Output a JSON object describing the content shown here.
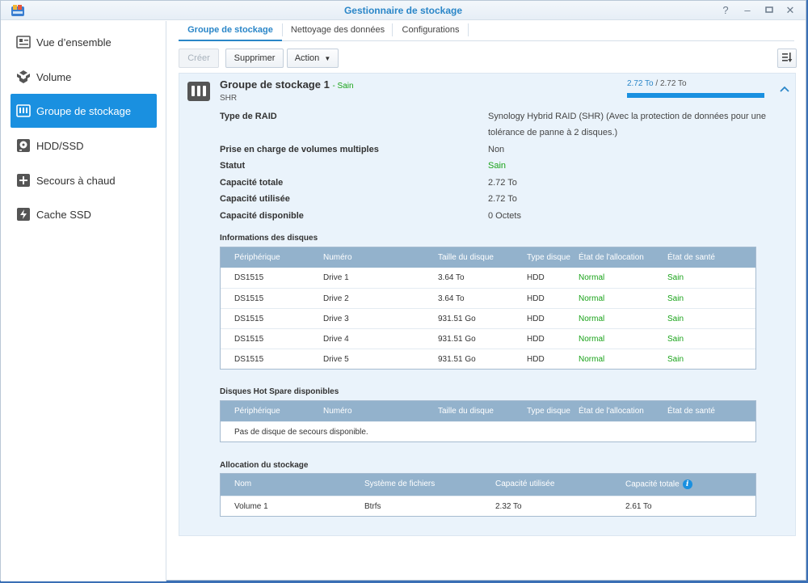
{
  "window": {
    "title": "Gestionnaire de stockage"
  },
  "sidebar": {
    "items": [
      {
        "label": "Vue d’ensemble",
        "icon": "overview-icon"
      },
      {
        "label": "Volume",
        "icon": "volume-icon"
      },
      {
        "label": "Groupe de stockage",
        "icon": "storage-pool-icon",
        "active": true
      },
      {
        "label": "HDD/SSD",
        "icon": "disk-icon"
      },
      {
        "label": "Secours à chaud",
        "icon": "hot-spare-icon"
      },
      {
        "label": "Cache SSD",
        "icon": "ssd-cache-icon"
      }
    ]
  },
  "tabs": [
    {
      "label": "Groupe de stockage",
      "active": true
    },
    {
      "label": "Nettoyage des données"
    },
    {
      "label": "Configurations"
    }
  ],
  "toolbar": {
    "create": "Créer",
    "delete": "Supprimer",
    "action": "Action"
  },
  "pool": {
    "name": "Groupe de stockage 1",
    "state": "- Sain",
    "raid_short": "SHR",
    "capacity_used": "2.72 To",
    "capacity_total": "2.72 To",
    "capacity_fraction": 1.0,
    "props": [
      {
        "label": "Type de RAID",
        "value_line1": "Synology Hybrid RAID (SHR) (Avec la protection de données pour une",
        "value_line2": "tolérance de panne à 2 disques.)"
      },
      {
        "label": "Prise en charge de volumes multiples",
        "value": "Non"
      },
      {
        "label": "Statut",
        "value": "Sain"
      },
      {
        "label": "Capacité totale",
        "value": "2.72 To"
      },
      {
        "label": "Capacité utilisée",
        "value": "2.72 To"
      },
      {
        "label": "Capacité disponible",
        "value": "0 Octets"
      }
    ]
  },
  "disks": {
    "title": "Informations des disques",
    "columns": [
      "Périphérique",
      "Numéro",
      "Taille du disque",
      "Type disque",
      "État de l'allocation",
      "État de santé"
    ],
    "rows": [
      [
        "DS1515",
        "Drive 1",
        "3.64 To",
        "HDD",
        "Normal",
        "Sain"
      ],
      [
        "DS1515",
        "Drive 2",
        "3.64 To",
        "HDD",
        "Normal",
        "Sain"
      ],
      [
        "DS1515",
        "Drive 3",
        "931.51 Go",
        "HDD",
        "Normal",
        "Sain"
      ],
      [
        "DS1515",
        "Drive 4",
        "931.51 Go",
        "HDD",
        "Normal",
        "Sain"
      ],
      [
        "DS1515",
        "Drive 5",
        "931.51 Go",
        "HDD",
        "Normal",
        "Sain"
      ]
    ]
  },
  "hotspare": {
    "title": "Disques Hot Spare disponibles",
    "columns": [
      "Périphérique",
      "Numéro",
      "Taille du disque",
      "Type disque",
      "État de l'allocation",
      "État de santé"
    ],
    "empty": "Pas de disque de secours disponible."
  },
  "allocation": {
    "title": "Allocation du stockage",
    "columns": [
      "Nom",
      "Système de fichiers",
      "Capacité utilisée",
      "Capacité totale"
    ],
    "rows": [
      [
        "Volume 1",
        "Btrfs",
        "2.32 To",
        "2.61 To"
      ]
    ]
  },
  "colors": {
    "accent": "#1a90e0",
    "ok": "#1aa31a",
    "table_header": "#93b2cc"
  }
}
